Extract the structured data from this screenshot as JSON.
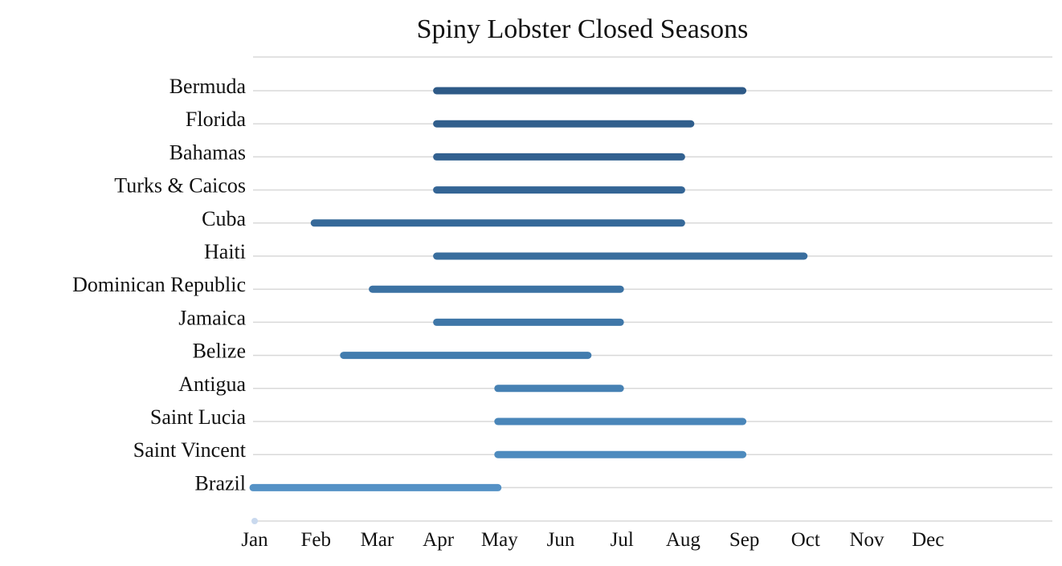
{
  "chart_data": {
    "type": "range-bar",
    "title": "Spiny Lobster Closed Seasons",
    "xlabel": "",
    "ylabel": "",
    "x_ticks": [
      "Jan",
      "Feb",
      "Mar",
      "Apr",
      "May",
      "Jun",
      "Jul",
      "Aug",
      "Sep",
      "Oct",
      "Nov",
      "Dec"
    ],
    "x_unit": "month (0 = Jan 1, 1 = Feb 1, ...)",
    "xlim": [
      0,
      13
    ],
    "grid": true,
    "categories": [
      "Bermuda",
      "Florida",
      "Bahamas",
      "Turks & Caicos",
      "Cuba",
      "Haiti",
      "Dominican Republic",
      "Jamaica",
      "Belize",
      "Antigua",
      "Saint Lucia",
      "Saint Vincent",
      "Brazil"
    ],
    "series": [
      {
        "name": "Bermuda",
        "start": 3.0,
        "end": 8.0,
        "color": "#2e5a87"
      },
      {
        "name": "Florida",
        "start": 3.0,
        "end": 7.15,
        "color": "#305e8c"
      },
      {
        "name": "Bahamas",
        "start": 3.0,
        "end": 7.0,
        "color": "#326190"
      },
      {
        "name": "Turks & Caicos",
        "start": 3.0,
        "end": 7.0,
        "color": "#346595"
      },
      {
        "name": "Cuba",
        "start": 1.0,
        "end": 7.0,
        "color": "#366999"
      },
      {
        "name": "Haiti",
        "start": 3.0,
        "end": 9.0,
        "color": "#396e9e"
      },
      {
        "name": "Dominican Republic",
        "start": 1.95,
        "end": 6.0,
        "color": "#3c72a3"
      },
      {
        "name": "Jamaica",
        "start": 3.0,
        "end": 6.0,
        "color": "#3f77a8"
      },
      {
        "name": "Belize",
        "start": 1.48,
        "end": 5.47,
        "color": "#427cae"
      },
      {
        "name": "Antigua",
        "start": 4.0,
        "end": 6.0,
        "color": "#4681b3"
      },
      {
        "name": "Saint Lucia",
        "start": 4.0,
        "end": 8.0,
        "color": "#4a86b9"
      },
      {
        "name": "Saint Vincent",
        "start": 4.0,
        "end": 8.0,
        "color": "#4e8bbe"
      },
      {
        "name": "Brazil",
        "start": 0.0,
        "end": 4.0,
        "color": "#5592c6"
      }
    ],
    "marker": {
      "value": 0,
      "color": "#c9d9ee"
    }
  }
}
